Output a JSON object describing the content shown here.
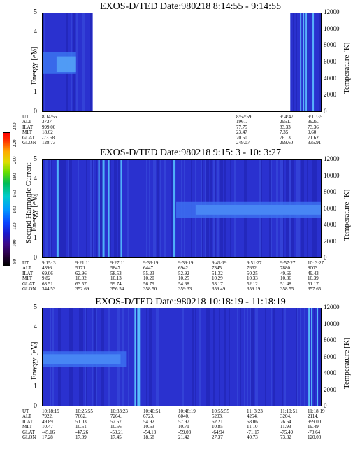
{
  "colorbar": {
    "label": "Second Harmonic Current",
    "ticks": [
      "240",
      "220",
      "200",
      "180",
      "160",
      "140",
      "120",
      "100",
      "80"
    ],
    "colors": [
      "#000000",
      "#2a0044",
      "#3c0a8a",
      "#1a1acc",
      "#0a44ff",
      "#0099ff",
      "#00cccc",
      "#00bb55",
      "#66dd00",
      "#dddd00",
      "#ffaa00",
      "#ff3300",
      "#ff0000"
    ]
  },
  "row_labels": [
    "UT",
    "ALT",
    "ILAT",
    "MLT",
    "GLAT",
    "GLON"
  ],
  "chart_data": [
    {
      "type": "heatmap",
      "title": "EXOS-D/TED   Date:980218   8:14:55 - 9:14:55",
      "ylabel": "Energy [eV]",
      "y2label": "Temperature [K]",
      "ylim": [
        0,
        5
      ],
      "y2lim": [
        0,
        12000
      ],
      "yticks": [
        "0",
        "1",
        "2",
        "3",
        "4",
        "5"
      ],
      "y2ticks": [
        "0",
        "2000",
        "4000",
        "6000",
        "8000",
        "10000",
        "12000"
      ],
      "data_gap": [
        "8:23:00",
        "8:57:59"
      ],
      "columns": [
        {
          "UT": "8:14:55",
          "ALT": "3727",
          "ILAT": "999.00",
          "MLT": "18.62",
          "GLAT": "-73.58",
          "GLON": "128.73"
        },
        {
          "UT": "8:57:59",
          "ALT": "1961.",
          "ILAT": "77.75",
          "MLT": "23.47",
          "GLAT": "70.50",
          "GLON": "249.07"
        },
        {
          "UT": "9: 4:47",
          "ALT": "2951.",
          "ILAT": "83.33",
          "MLT": "7.35",
          "GLAT": "76.13",
          "GLON": "299.60"
        },
        {
          "UT": "9:11:35",
          "ALT": "3925.",
          "ILAT": "73.36",
          "MLT": "9.60",
          "GLAT": "71.62",
          "GLON": "335.91"
        }
      ]
    },
    {
      "type": "heatmap",
      "title": "EXOS-D/TED   Date:980218   9:15: 3 - 10: 3:27",
      "ylabel": "Energy [eV]",
      "y2label": "Temperature [K]",
      "ylim": [
        0,
        5
      ],
      "y2lim": [
        0,
        12000
      ],
      "yticks": [
        "0",
        "1",
        "2",
        "3",
        "4",
        "5"
      ],
      "y2ticks": [
        "0",
        "2000",
        "4000",
        "6000",
        "8000",
        "10000",
        "12000"
      ],
      "columns": [
        {
          "UT": "9:15: 3",
          "ALT": "4396.",
          "ILAT": "69.06",
          "MLT": "9.82",
          "GLAT": "68.51",
          "GLON": "344.53"
        },
        {
          "UT": "9:21:11",
          "ALT": "5171.",
          "ILAT": "62.96",
          "MLT": "10.02",
          "GLAT": "63.57",
          "GLON": "352.69"
        },
        {
          "UT": "9:27:11",
          "ALT": "5847.",
          "ILAT": "58.53",
          "MLT": "10.13",
          "GLAT": "59.74",
          "GLON": "356.54"
        },
        {
          "UT": "9:33:19",
          "ALT": "6447.",
          "ILAT": "55.23",
          "MLT": "10.20",
          "GLAT": "56.79",
          "GLON": "358.50"
        },
        {
          "UT": "9:39:19",
          "ALT": "6942.",
          "ILAT": "52.92",
          "MLT": "10.25",
          "GLAT": "54.68",
          "GLON": "359.33"
        },
        {
          "UT": "9:45:19",
          "ALT": "7345.",
          "ILAT": "51.32",
          "MLT": "10.29",
          "GLAT": "53.17",
          "GLON": "359.49"
        },
        {
          "UT": "9:51:27",
          "ALT": "7662.",
          "ILAT": "50.25",
          "MLT": "10.33",
          "GLAT": "52.12",
          "GLON": "359.19"
        },
        {
          "UT": "9:57:27",
          "ALT": "7880.",
          "ILAT": "49.66",
          "MLT": "10.36",
          "GLAT": "51.48",
          "GLON": "358.55"
        },
        {
          "UT": "10: 3:27",
          "ALT": "8003.",
          "ILAT": "49.43",
          "MLT": "10.39",
          "GLAT": "51.17",
          "GLON": "357.65"
        }
      ]
    },
    {
      "type": "heatmap",
      "title": "EXOS-D/TED   Date:980218   10:18:19 - 11:18:19",
      "ylabel": "Energy [eV]",
      "y2label": "Temperature [K]",
      "ylim": [
        0,
        5
      ],
      "y2lim": [
        0,
        12000
      ],
      "yticks": [
        "0",
        "1",
        "2",
        "3",
        "4",
        "5"
      ],
      "y2ticks": [
        "0",
        "2000",
        "4000",
        "6000",
        "8000",
        "10000",
        "12000"
      ],
      "columns": [
        {
          "UT": "10:18:19",
          "ALT": "7922.",
          "ILAT": "49.89",
          "MLT": "10.47",
          "GLAT": "-45.16",
          "GLON": "17.28"
        },
        {
          "UT": "10:25:55",
          "ALT": "7662.",
          "ILAT": "51.03",
          "MLT": "10.51",
          "GLAT": "-47.26",
          "GLON": "17.09"
        },
        {
          "UT": "10:33:23",
          "ALT": "7264.",
          "ILAT": "52.67",
          "MLT": "10.56",
          "GLAT": "-50.21",
          "GLON": "17.45"
        },
        {
          "UT": "10:40:51",
          "ALT": "6723.",
          "ILAT": "54.92",
          "MLT": "10.63",
          "GLAT": "-54.13",
          "GLON": "18.68"
        },
        {
          "UT": "10:48:19",
          "ALT": "6040.",
          "ILAT": "57.97",
          "MLT": "10.71",
          "GLAT": "-59.03",
          "GLON": "21.42"
        },
        {
          "UT": "10:55:55",
          "ALT": "5203.",
          "ILAT": "62.21",
          "MLT": "10.85",
          "GLAT": "-64.94",
          "GLON": "27.37"
        },
        {
          "UT": "11: 3:23",
          "ALT": "4254.",
          "ILAT": "68.06",
          "MLT": "11.10",
          "GLAT": "-71.17",
          "GLON": "40.73"
        },
        {
          "UT": "11:10:51",
          "ALT": "3204.",
          "ILAT": "76.64",
          "MLT": "11.93",
          "GLAT": "-75.49",
          "GLON": "73.32"
        },
        {
          "UT": "11:18:19",
          "ALT": "2114.",
          "ILAT": "999.00",
          "MLT": "19.49",
          "GLAT": "-70.64",
          "GLON": "120.08"
        }
      ]
    }
  ]
}
